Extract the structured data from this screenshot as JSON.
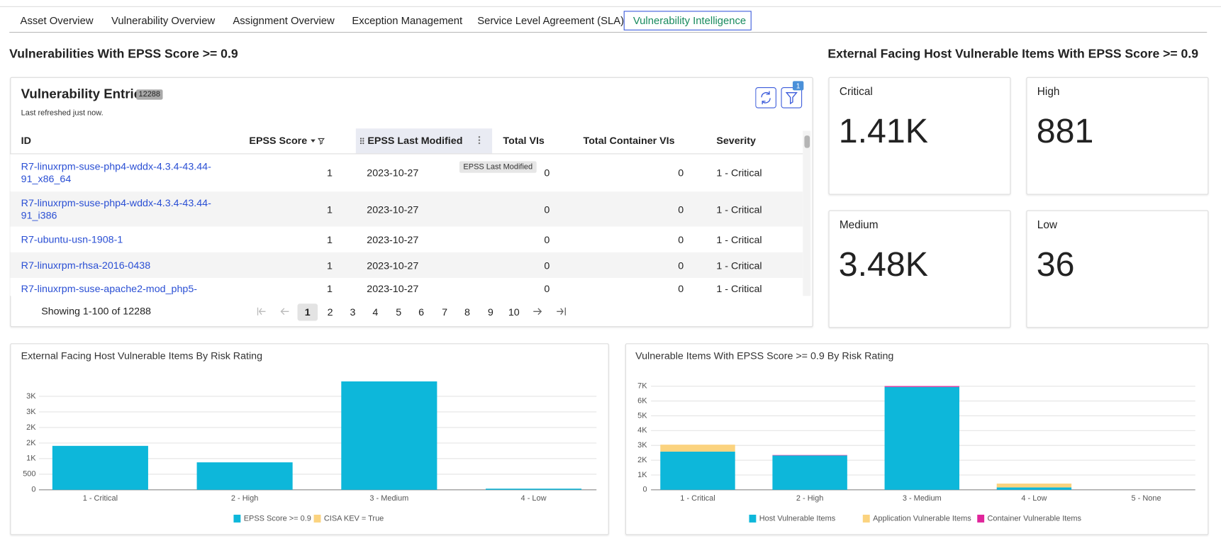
{
  "tabs": [
    "Asset Overview",
    "Vulnerability Overview",
    "Assignment Overview",
    "Exception Management",
    "Service Level Agreement (SLA)",
    "Vulnerability Intelligence"
  ],
  "active_tab": 5,
  "left_section": {
    "title": "Vulnerabilities With EPSS Score >= 0.9"
  },
  "table": {
    "title": "Vulnerability Entries",
    "count": 12288,
    "refreshed": "Last refreshed just now.",
    "filter_count": 1,
    "columns": [
      "ID",
      "EPSS Score",
      "EPSS Last Modified",
      "Total VIs",
      "Total Container VIs",
      "Severity"
    ],
    "rows": [
      [
        "R7-linuxrpm-suse-php4-wddx-4.3.4-43.44-91_x86_64",
        1,
        "2023-10-27",
        0,
        0,
        "1 - Critical"
      ],
      [
        "R7-linuxrpm-suse-php4-wddx-4.3.4-43.44-91_i386",
        1,
        "2023-10-27",
        0,
        0,
        "1 - Critical"
      ],
      [
        "R7-ubuntu-usn-1908-1",
        1,
        "2023-10-27",
        0,
        0,
        "1 - Critical"
      ],
      [
        "R7-linuxrpm-rhsa-2016-0438",
        1,
        "2023-10-27",
        0,
        0,
        "1 - Critical"
      ],
      [
        "R7-linuxrpm-suse-apache2-mod_php5-",
        1,
        "2023-10-27",
        0,
        0,
        "1 - Critical"
      ]
    ],
    "tooltip": "EPSS Last Modified",
    "pagination": {
      "summary": "Showing 1-100 of 12288",
      "pages": [
        1,
        2,
        3,
        4,
        5,
        6,
        7,
        8,
        9,
        10
      ],
      "current": 1
    }
  },
  "right_section": {
    "title": "External Facing Host Vulnerable Items With EPSS Score >= 0.9",
    "cards": [
      {
        "label": "Critical",
        "value": "1.41K"
      },
      {
        "label": "High",
        "value": "881"
      },
      {
        "label": "Medium",
        "value": "3.48K"
      },
      {
        "label": "Low",
        "value": "36"
      }
    ]
  },
  "chart_data": [
    {
      "type": "bar",
      "title": "External Facing Host Vulnerable Items By Risk Rating",
      "stacked": true,
      "grid": true,
      "categories": [
        "1 - Critical",
        "2 - High",
        "3 - Medium",
        "4 - Low"
      ],
      "series": [
        {
          "name": "EPSS Score >= 0.9",
          "color": "#0db7da",
          "values": [
            1410,
            881,
            3480,
            36
          ]
        },
        {
          "name": "CISA KEV = True",
          "color": "#fbd37f",
          "values": [
            0,
            0,
            0,
            0
          ]
        }
      ],
      "ylim": [
        0,
        3500
      ],
      "yticks": [
        0,
        500,
        {
          "value": 1000,
          "label": "1K"
        },
        {
          "value": 1500,
          "label": "2K"
        },
        {
          "value": 2000,
          "label": "2K"
        },
        {
          "value": 2500,
          "label": "3K"
        },
        {
          "value": 3000,
          "label": "3K"
        }
      ]
    },
    {
      "type": "bar",
      "title": "Vulnerable Items With EPSS Score >= 0.9 By Risk Rating",
      "stacked": true,
      "grid": true,
      "categories": [
        "1 - Critical",
        "2 - High",
        "3 - Medium",
        "4 - Low",
        "5 - None"
      ],
      "series": [
        {
          "name": "Host Vulnerable Items",
          "color": "#0db7da",
          "values": [
            2580,
            2320,
            6950,
            160,
            0
          ]
        },
        {
          "name": "Application Vulnerable Items",
          "color": "#fbd37f",
          "values": [
            470,
            0,
            0,
            260,
            0
          ]
        },
        {
          "name": "Container Vulnerable Items",
          "color": "#e0259b",
          "values": [
            0,
            30,
            60,
            0,
            0
          ]
        }
      ],
      "ylim": [
        0,
        7000
      ],
      "yticks": [
        0,
        {
          "value": 1000,
          "label": "1K"
        },
        {
          "value": 2000,
          "label": "2K"
        },
        {
          "value": 3000,
          "label": "3K"
        },
        {
          "value": 4000,
          "label": "4K"
        },
        {
          "value": 5000,
          "label": "5K"
        },
        {
          "value": 6000,
          "label": "6K"
        },
        {
          "value": 7000,
          "label": "7K"
        }
      ]
    }
  ]
}
